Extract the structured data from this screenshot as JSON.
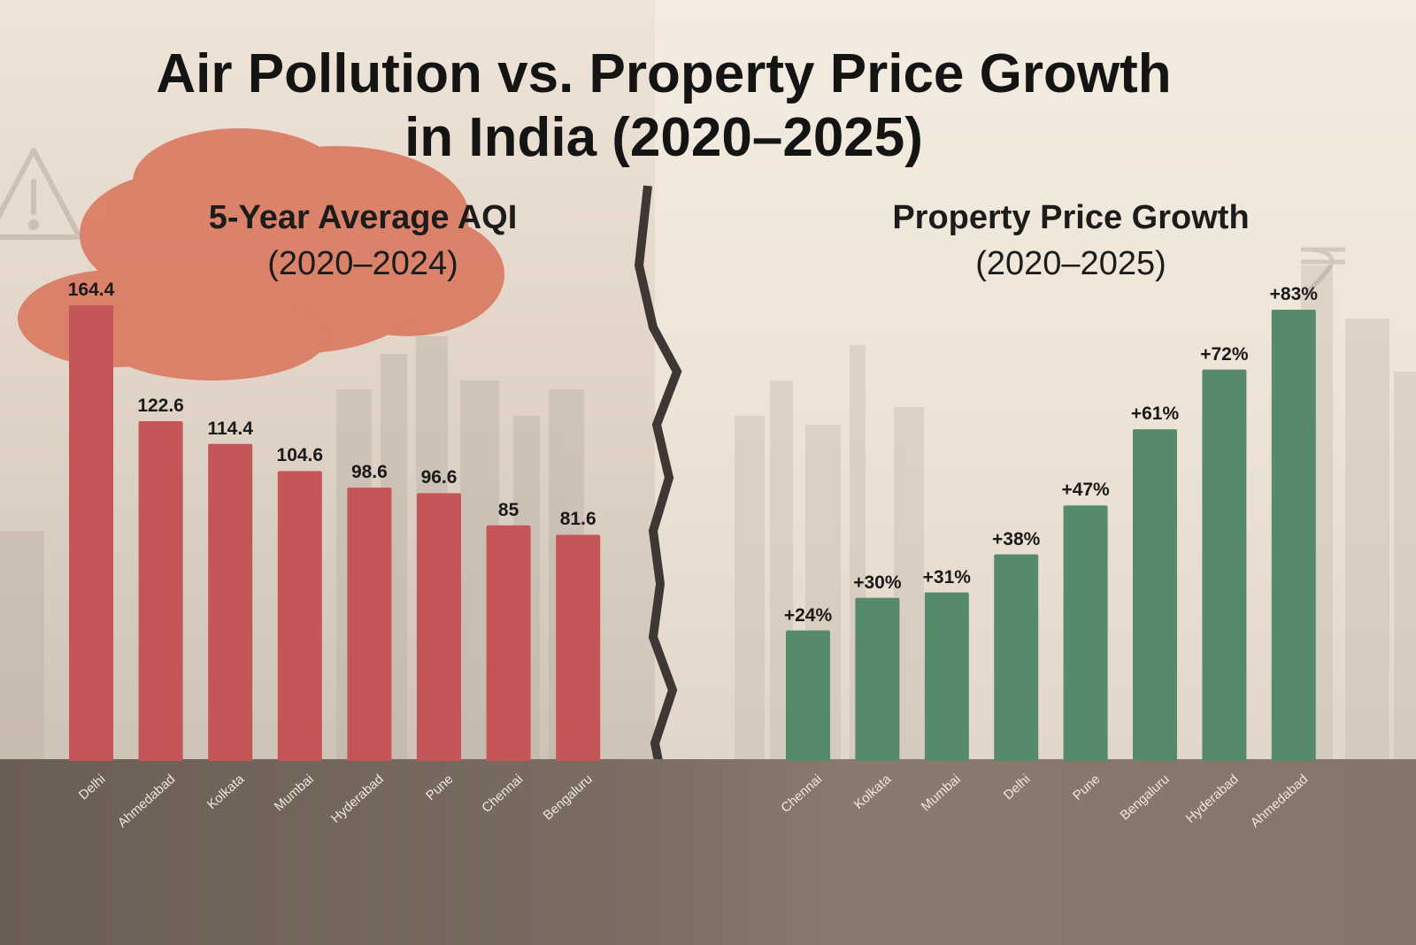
{
  "title_line1": "Air Pollution vs. Property Price Growth",
  "title_line2": "in India (2020–2025)",
  "colors": {
    "aqi_bar": "#c55657",
    "growth_bar": "#558b6b",
    "cloud": "#d9735a",
    "ground": "#6f6258"
  },
  "icons": [
    "warning-icon",
    "rupee-icon"
  ],
  "chart_data": [
    {
      "type": "bar",
      "title": "5-Year Average AQI",
      "subtitle": "(2020–2024)",
      "xlabel": "",
      "ylabel": "",
      "ylim": [
        0,
        170
      ],
      "categories": [
        "Delhi",
        "Ahmedabad",
        "Kolkata",
        "Mumbai",
        "Hyderabad",
        "Pune",
        "Chennai",
        "Bengaluru"
      ],
      "values": [
        164.4,
        122.6,
        114.4,
        104.6,
        98.6,
        96.6,
        85,
        81.6
      ],
      "labels": [
        "164.4",
        "122.6",
        "114.4",
        "104.6",
        "98.6",
        "96.6",
        "85",
        "81.6"
      ]
    },
    {
      "type": "bar",
      "title": "Property Price Growth",
      "subtitle": "(2020–2025)",
      "xlabel": "",
      "ylabel": "",
      "ylim": [
        0,
        90
      ],
      "categories": [
        "Chennai",
        "Kolkata",
        "Mumbai",
        "Delhi",
        "Pune",
        "Bengaluru",
        "Hyderabad",
        "Ahmedabad"
      ],
      "values": [
        24,
        30,
        31,
        38,
        47,
        61,
        72,
        83
      ],
      "labels": [
        "+24%",
        "+30%",
        "+31%",
        "+38%",
        "+47%",
        "+61%",
        "+72%",
        "+83%"
      ]
    }
  ]
}
